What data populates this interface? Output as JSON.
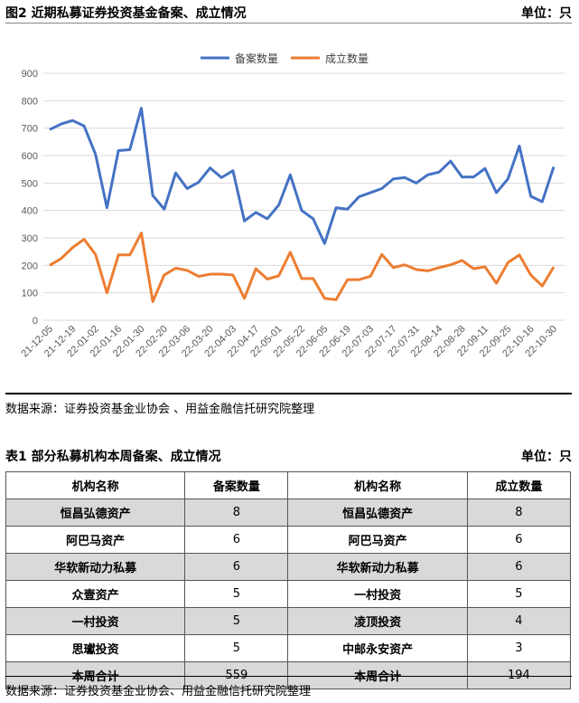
{
  "figure": {
    "title": "图2  近期私募证券投资基金备案、成立情况",
    "unit": "单位：只",
    "source": "数据来源：证券投资基金业协会 、用益金融信托研究院整理"
  },
  "chart_data": {
    "type": "line",
    "x": [
      "21-12-05",
      "",
      "21-12-19",
      "",
      "22-01-02",
      "",
      "22-01-16",
      "",
      "22-01-30",
      "",
      "22-02-20",
      "",
      "22-03-06",
      "",
      "22-03-20",
      "",
      "22-04-03",
      "",
      "22-04-17",
      "",
      "22-05-01",
      "",
      "22-05-22",
      "",
      "22-06-05",
      "",
      "22-06-19",
      "",
      "22-07-03",
      "",
      "22-07-17",
      "",
      "22-07-31",
      "",
      "22-08-14",
      "",
      "22-08-28",
      "",
      "22-09-11",
      "",
      "22-09-25",
      "",
      "22-10-16",
      "",
      "22-10-30"
    ],
    "ylim": [
      0,
      900
    ],
    "yticks": [
      0,
      100,
      200,
      300,
      400,
      500,
      600,
      700,
      800,
      900
    ],
    "grid": true,
    "legend_position": "top",
    "series": [
      {
        "name": "备案数量",
        "color": "#4472c4",
        "values": [
          695,
          715,
          728,
          708,
          605,
          410,
          618,
          622,
          773,
          455,
          405,
          537,
          480,
          503,
          555,
          520,
          545,
          362,
          393,
          370,
          420,
          530,
          400,
          370,
          280,
          410,
          405,
          450,
          465,
          480,
          515,
          520,
          500,
          530,
          540,
          580,
          522,
          522,
          553,
          465,
          515,
          635,
          452,
          432,
          559
        ]
      },
      {
        "name": "成立数量",
        "color": "#ed7d31",
        "values": [
          200,
          225,
          265,
          295,
          240,
          100,
          238,
          238,
          318,
          68,
          165,
          190,
          182,
          160,
          168,
          168,
          165,
          80,
          188,
          150,
          162,
          248,
          152,
          152,
          80,
          75,
          148,
          148,
          160,
          240,
          192,
          202,
          185,
          180,
          192,
          202,
          218,
          188,
          195,
          135,
          210,
          238,
          165,
          125,
          194
        ]
      }
    ]
  },
  "table": {
    "title": "表1  部分私募机构本周备案、成立情况",
    "unit": "单位：只",
    "headers": [
      "机构名称",
      "备案数量",
      "机构名称",
      "成立数量"
    ],
    "rows": [
      [
        "恒昌弘德资产",
        "8",
        "恒昌弘德资产",
        "8"
      ],
      [
        "阿巴马资产",
        "6",
        "阿巴马资产",
        "6"
      ],
      [
        "华软新动力私募",
        "6",
        "华软新动力私募",
        "6"
      ],
      [
        "众壹资产",
        "5",
        "一村投资",
        "5"
      ],
      [
        "一村投资",
        "5",
        "凌顶投资",
        "4"
      ],
      [
        "思瓛投资",
        "5",
        "中邮永安资产",
        "3"
      ],
      [
        "本周合计",
        "559",
        "本周合计",
        "194"
      ]
    ],
    "source": "数据来源：证券投资基金业协会、用益金融信托研究院整理"
  }
}
